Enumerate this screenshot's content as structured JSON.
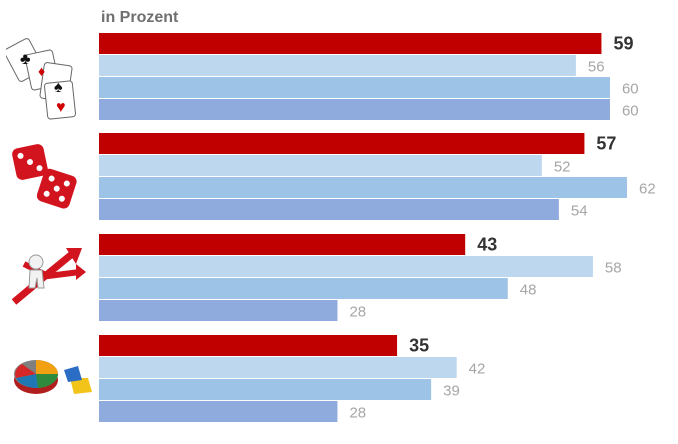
{
  "chart_data": {
    "type": "bar",
    "orientation": "horizontal",
    "unit_label": "in Prozent",
    "xlim": [
      0,
      62
    ],
    "groups": [
      {
        "icon": "playing-cards-icon",
        "values": [
          59,
          56,
          60,
          60
        ]
      },
      {
        "icon": "dice-icon",
        "values": [
          57,
          52,
          62,
          54
        ]
      },
      {
        "icon": "crossroads-arrows-icon",
        "values": [
          43,
          58,
          48,
          28
        ]
      },
      {
        "icon": "pie-puzzle-icon",
        "values": [
          35,
          42,
          39,
          28
        ]
      }
    ],
    "series_colors": [
      "#c00000",
      "#bdd7ee",
      "#9dc3e6",
      "#8faadc"
    ],
    "label_colors": [
      "#333333",
      "#a6a6a6",
      "#a6a6a6",
      "#a6a6a6"
    ],
    "legend": "none",
    "grid": false
  }
}
